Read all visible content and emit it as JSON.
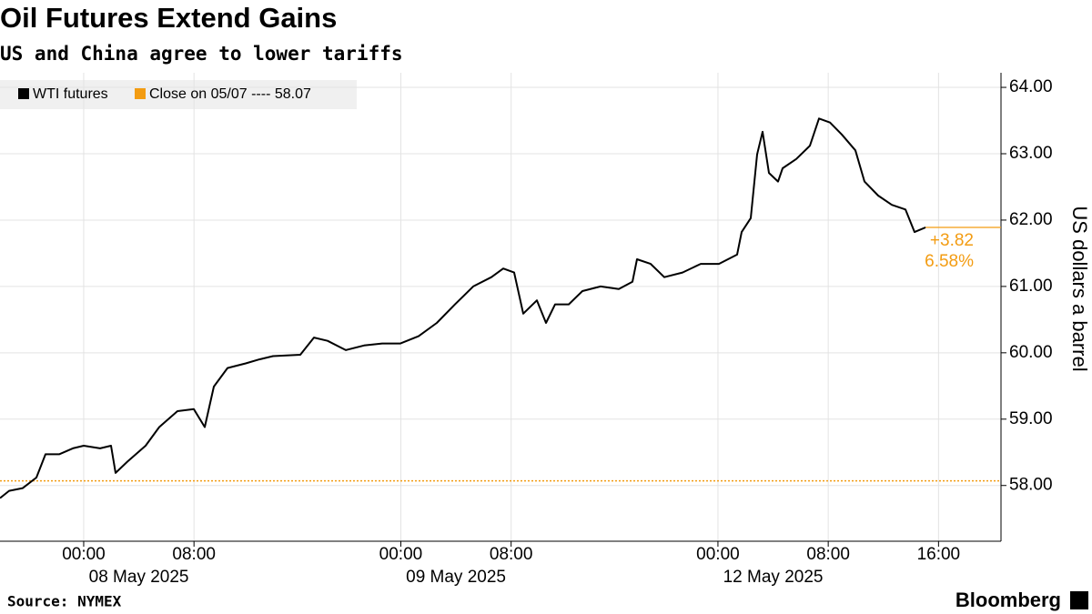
{
  "chart_data": {
    "type": "line",
    "title": "Oil Futures Extend Gains",
    "subtitle": "US and China agree to lower tariffs",
    "source": "Source: NYMEX",
    "brand": "Bloomberg",
    "y_label": "US dollars a barrel",
    "series": [
      {
        "name": "WTI futures",
        "color": "#000000",
        "x": [
          -6.07,
          -5.41,
          -4.42,
          -3.43,
          -2.77,
          -1.78,
          -0.79,
          0,
          1.19,
          1.98,
          2.31,
          3.17,
          4.49,
          5.48,
          6.8,
          7.99,
          8.78,
          9.44,
          10.43,
          11.75,
          12.74,
          13.73,
          15.71,
          16.7,
          17.69,
          19.01,
          20.33,
          21.65,
          22.97,
          24.29,
          25.61,
          26.93,
          28.25,
          29.57,
          30.43,
          31.22,
          31.88,
          32.87,
          33.53,
          34.19,
          35.18,
          36.17,
          37.49,
          38.81,
          39.8,
          40.13,
          41.12,
          42.11,
          43.43,
          44.75,
          46.07,
          47.39,
          47.72,
          48.38,
          48.84,
          49.24,
          49.7,
          50.36,
          50.69,
          51.68,
          52.67,
          53.33,
          54.13,
          54.98,
          55.97,
          56.63,
          57.62,
          58.61,
          59.6,
          60.26,
          61.06
        ],
        "values": [
          57.81,
          57.92,
          57.96,
          58.12,
          58.47,
          58.47,
          58.56,
          58.6,
          58.56,
          58.6,
          58.19,
          58.36,
          58.6,
          58.88,
          59.12,
          59.15,
          58.88,
          59.49,
          59.77,
          59.84,
          59.9,
          59.95,
          59.97,
          60.23,
          60.18,
          60.04,
          60.11,
          60.14,
          60.14,
          60.25,
          60.45,
          60.73,
          61.0,
          61.14,
          61.27,
          61.21,
          60.59,
          60.79,
          60.45,
          60.73,
          60.73,
          60.93,
          61.0,
          60.96,
          61.07,
          61.41,
          61.34,
          61.14,
          61.21,
          61.34,
          61.34,
          61.48,
          61.82,
          62.03,
          62.99,
          63.33,
          62.71,
          62.58,
          62.78,
          62.92,
          63.12,
          63.53,
          63.47,
          63.29,
          63.05,
          62.58,
          62.37,
          62.23,
          62.16,
          61.82,
          61.89
        ]
      }
    ],
    "reference": {
      "name": "Close on 05/07 ---- 58.07",
      "value": 58.07,
      "color": "#f39c12"
    },
    "change_label": "+3.82",
    "change_pct_label": "6.58%",
    "dates": [
      "08 May 2025",
      "09 May 2025",
      "12 May 2025"
    ],
    "xlim": [
      -6.07,
      66.53
    ],
    "xticks": [
      {
        "value": 0,
        "label": "00:00"
      },
      {
        "value": 8,
        "label": "08:00"
      },
      {
        "value": 23,
        "label": "00:00"
      },
      {
        "value": 31,
        "label": "08:00"
      },
      {
        "value": 46,
        "label": "00:00"
      },
      {
        "value": 54,
        "label": "08:00"
      },
      {
        "value": 62,
        "label": "16:00"
      }
    ],
    "ylim": [
      57.16,
      64.22
    ],
    "yticks": [
      {
        "value": 58,
        "label": "58.00"
      },
      {
        "value": 59,
        "label": "59.00"
      },
      {
        "value": 60,
        "label": "60.00"
      },
      {
        "value": 61,
        "label": "61.00"
      },
      {
        "value": 62,
        "label": "62.00"
      },
      {
        "value": 63,
        "label": "63.00"
      },
      {
        "value": 64,
        "label": "64.00"
      }
    ],
    "grid": true
  }
}
